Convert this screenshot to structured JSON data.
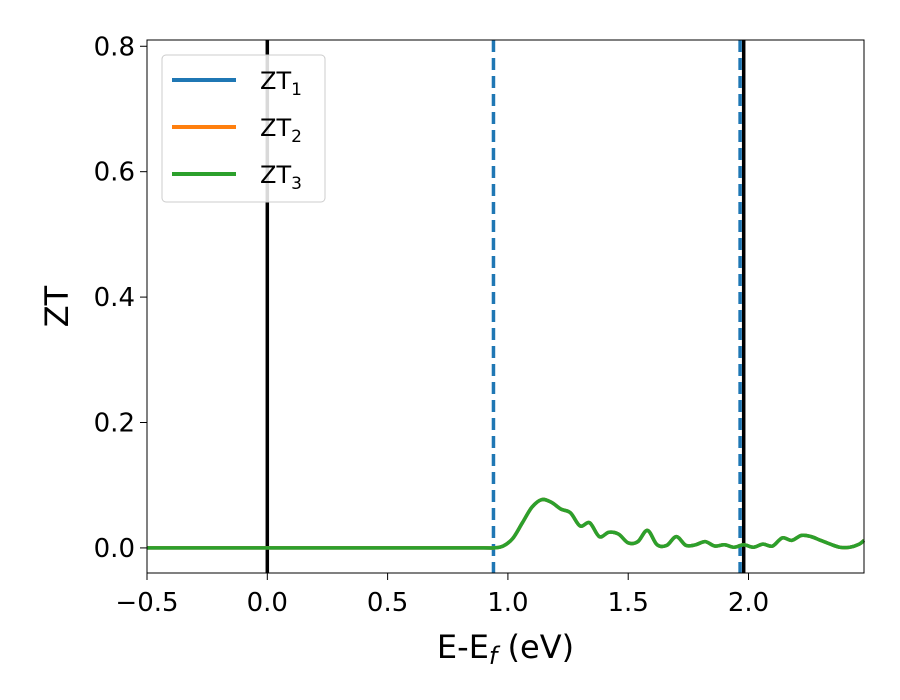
{
  "chart_data": {
    "type": "line",
    "title": "",
    "xlabel": "E-E",
    "xlabel_sub": "f",
    "xlabel_unit": " (eV)",
    "ylabel": "ZT",
    "xlim": [
      -0.5,
      2.48
    ],
    "ylim": [
      -0.04,
      0.81
    ],
    "xticks": [
      -0.5,
      0.0,
      0.5,
      1.0,
      1.5,
      2.0
    ],
    "xtick_labels": [
      "−0.5",
      "0.0",
      "0.5",
      "1.0",
      "1.5",
      "2.0"
    ],
    "yticks": [
      0.0,
      0.2,
      0.4,
      0.6,
      0.8
    ],
    "ytick_labels": [
      "0.0",
      "0.2",
      "0.4",
      "0.6",
      "0.8"
    ],
    "grid": false,
    "legend_position": "top-left",
    "series": [
      {
        "name": "ZT",
        "name_sub": "1",
        "color": "#1f77b4"
      },
      {
        "name": "ZT",
        "name_sub": "2",
        "color": "#ff7f0e"
      },
      {
        "name": "ZT",
        "name_sub": "3",
        "color": "#2ca02c"
      }
    ],
    "curve_x": [
      -0.5,
      0.0,
      0.5,
      0.9,
      0.94,
      0.98,
      1.02,
      1.06,
      1.1,
      1.14,
      1.18,
      1.22,
      1.26,
      1.3,
      1.34,
      1.38,
      1.42,
      1.46,
      1.5,
      1.54,
      1.58,
      1.62,
      1.66,
      1.7,
      1.74,
      1.78,
      1.82,
      1.86,
      1.9,
      1.94,
      1.98,
      2.02,
      2.06,
      2.1,
      2.14,
      2.18,
      2.22,
      2.26,
      2.3,
      2.34,
      2.38,
      2.42,
      2.46,
      2.48
    ],
    "curve_y": [
      0.0,
      0.0,
      0.0,
      0.0,
      0.0,
      0.003,
      0.015,
      0.04,
      0.065,
      0.077,
      0.073,
      0.062,
      0.056,
      0.035,
      0.04,
      0.018,
      0.025,
      0.022,
      0.008,
      0.01,
      0.028,
      0.005,
      0.004,
      0.018,
      0.004,
      0.005,
      0.01,
      0.003,
      0.005,
      0.001,
      0.005,
      0.001,
      0.006,
      0.003,
      0.016,
      0.012,
      0.02,
      0.018,
      0.012,
      0.006,
      0.001,
      0.001,
      0.006,
      0.012
    ],
    "vlines": [
      {
        "x": 0.0,
        "color": "#000000",
        "style": "solid"
      },
      {
        "x": 1.98,
        "color": "#000000",
        "style": "solid"
      },
      {
        "x": 0.94,
        "color": "#1f77b4",
        "style": "dashed"
      },
      {
        "x": 1.965,
        "color": "#1f77b4",
        "style": "dashed"
      }
    ]
  }
}
